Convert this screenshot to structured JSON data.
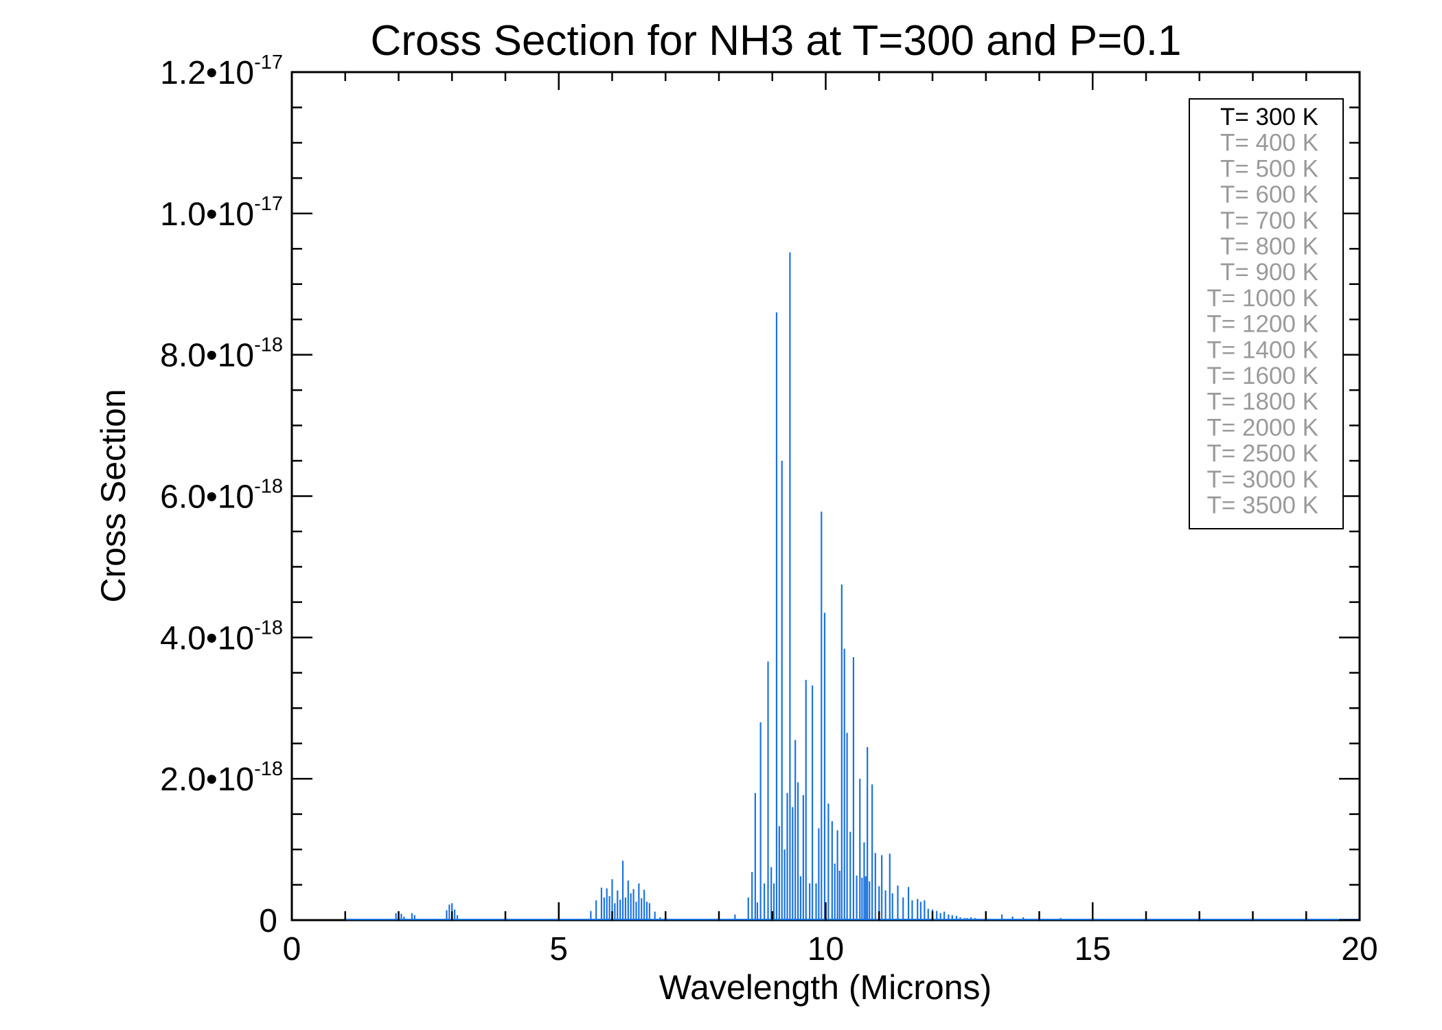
{
  "chart_data": {
    "type": "line",
    "title": "Cross Section for NH3 at T=300 and P=0.1",
    "xlabel": "Wavelength (Microns)",
    "ylabel": "Cross Section",
    "xlim": [
      0,
      20
    ],
    "ylim": [
      0,
      1.2e-17
    ],
    "grid": false,
    "legend_position": "top-right",
    "colors": {
      "series": "#1a73e0",
      "legend_active": "#000000",
      "legend_inactive": "#9a9a9a",
      "axes": "#000000"
    },
    "x_ticks": [
      {
        "value": 0,
        "label": "0"
      },
      {
        "value": 5,
        "label": "5"
      },
      {
        "value": 10,
        "label": "10"
      },
      {
        "value": 15,
        "label": "15"
      },
      {
        "value": 20,
        "label": "20"
      }
    ],
    "y_ticks": [
      {
        "value": 0,
        "mantissa": "0",
        "exp": ""
      },
      {
        "value": 2e-18,
        "mantissa": "2.0•10",
        "exp": "-18"
      },
      {
        "value": 4e-18,
        "mantissa": "4.0•10",
        "exp": "-18"
      },
      {
        "value": 6e-18,
        "mantissa": "6.0•10",
        "exp": "-18"
      },
      {
        "value": 8e-18,
        "mantissa": "8.0•10",
        "exp": "-18"
      },
      {
        "value": 1e-17,
        "mantissa": "1.0•10",
        "exp": "-17"
      },
      {
        "value": 1.2e-17,
        "mantissa": "1.2•10",
        "exp": "-17"
      }
    ],
    "legend": [
      {
        "label": "T= 300 K",
        "active": true
      },
      {
        "label": "T= 400 K",
        "active": false
      },
      {
        "label": "T= 500 K",
        "active": false
      },
      {
        "label": "T= 600 K",
        "active": false
      },
      {
        "label": "T= 700 K",
        "active": false
      },
      {
        "label": "T= 800 K",
        "active": false
      },
      {
        "label": "T= 900 K",
        "active": false
      },
      {
        "label": "T= 1000 K",
        "active": false
      },
      {
        "label": "T= 1200 K",
        "active": false
      },
      {
        "label": "T= 1400 K",
        "active": false
      },
      {
        "label": "T= 1600 K",
        "active": false
      },
      {
        "label": "T= 1800 K",
        "active": false
      },
      {
        "label": "T= 2000 K",
        "active": false
      },
      {
        "label": "T= 2500 K",
        "active": false
      },
      {
        "label": "T= 3000 K",
        "active": false
      },
      {
        "label": "T= 3500 K",
        "active": false
      }
    ],
    "series": [
      {
        "name": "T= 300 K",
        "x": [
          1.0,
          1.95,
          2.0,
          2.05,
          2.1,
          2.25,
          2.3,
          2.9,
          2.95,
          3.0,
          3.05,
          3.1,
          5.6,
          5.7,
          5.8,
          5.85,
          5.9,
          5.95,
          6.0,
          6.05,
          6.1,
          6.15,
          6.2,
          6.25,
          6.3,
          6.35,
          6.4,
          6.45,
          6.5,
          6.55,
          6.6,
          6.65,
          6.7,
          6.8,
          6.9,
          8.3,
          8.55,
          8.62,
          8.68,
          8.72,
          8.78,
          8.85,
          8.92,
          8.98,
          9.03,
          9.08,
          9.13,
          9.18,
          9.23,
          9.28,
          9.33,
          9.38,
          9.43,
          9.48,
          9.53,
          9.58,
          9.63,
          9.7,
          9.75,
          9.82,
          9.87,
          9.92,
          9.98,
          10.05,
          10.12,
          10.17,
          10.22,
          10.26,
          10.3,
          10.35,
          10.4,
          10.46,
          10.52,
          10.58,
          10.64,
          10.68,
          10.72,
          10.75,
          10.78,
          10.82,
          10.87,
          10.93,
          11.0,
          11.05,
          11.12,
          11.2,
          11.25,
          11.35,
          11.45,
          11.55,
          11.62,
          11.72,
          11.78,
          11.85,
          11.92,
          12.0,
          12.08,
          12.15,
          12.22,
          12.3,
          12.37,
          12.45,
          12.52,
          12.6,
          12.65,
          12.72,
          12.8,
          12.88,
          12.95,
          13.05,
          13.15,
          13.3,
          13.5,
          13.7,
          14.0,
          14.4,
          15.0,
          15.9,
          16.0,
          16.1,
          17.0,
          20.0
        ],
        "y": [
          2e-20,
          1e-19,
          1.1e-19,
          9e-20,
          5e-20,
          1e-19,
          7e-20,
          1.4e-19,
          2.2e-19,
          2.4e-19,
          1.5e-19,
          7e-20,
          1.3e-19,
          2.8e-19,
          4.6e-19,
          3.2e-19,
          4.5e-19,
          3.4e-19,
          5.8e-19,
          2.4e-19,
          4.2e-19,
          2.9e-19,
          8.4e-19,
          3.2e-19,
          5.6e-19,
          3.8e-19,
          4.4e-19,
          2.6e-19,
          5.2e-19,
          3.1e-19,
          4.3e-19,
          2.6e-19,
          2.4e-19,
          1.2e-19,
          4e-20,
          8e-20,
          3.2e-19,
          6.8e-19,
          1.8e-18,
          2.5e-19,
          2.8e-18,
          5.2e-19,
          3.66e-18,
          7.5e-19,
          5.2e-19,
          8.6e-18,
          1.33e-18,
          6.5e-18,
          1e-18,
          1.8e-18,
          9.45e-18,
          1.6e-18,
          2.55e-18,
          1.95e-18,
          6.2e-19,
          1.77e-18,
          3.4e-18,
          5.2e-19,
          3.32e-18,
          5.2e-19,
          1.3e-18,
          5.78e-18,
          4.35e-18,
          1.65e-18,
          1.4e-18,
          8e-19,
          1.27e-18,
          7e-19,
          4.75e-18,
          3.84e-18,
          2.65e-18,
          1.25e-18,
          3.72e-18,
          6.3e-19,
          2e-18,
          6e-19,
          1.1e-18,
          6.2e-19,
          2.45e-18,
          5.5e-19,
          1.92e-18,
          9.5e-19,
          4.8e-19,
          9.2e-19,
          4.2e-19,
          9.4e-19,
          3.8e-19,
          4.9e-19,
          3.2e-19,
          4.7e-19,
          2.8e-19,
          3e-19,
          2.6e-19,
          2.8e-19,
          1.6e-19,
          1.5e-19,
          1.3e-19,
          1e-19,
          1.2e-19,
          8e-20,
          7e-20,
          6e-20,
          4e-20,
          3e-20,
          3e-20,
          4e-20,
          3e-20,
          2e-20,
          1e-20,
          2e-20,
          1e-20,
          8e-20,
          5e-20,
          4e-20,
          2e-20,
          3e-20,
          1e-20,
          1e-20,
          1e-20,
          1e-20,
          5e-21,
          2e-21
        ]
      }
    ]
  }
}
